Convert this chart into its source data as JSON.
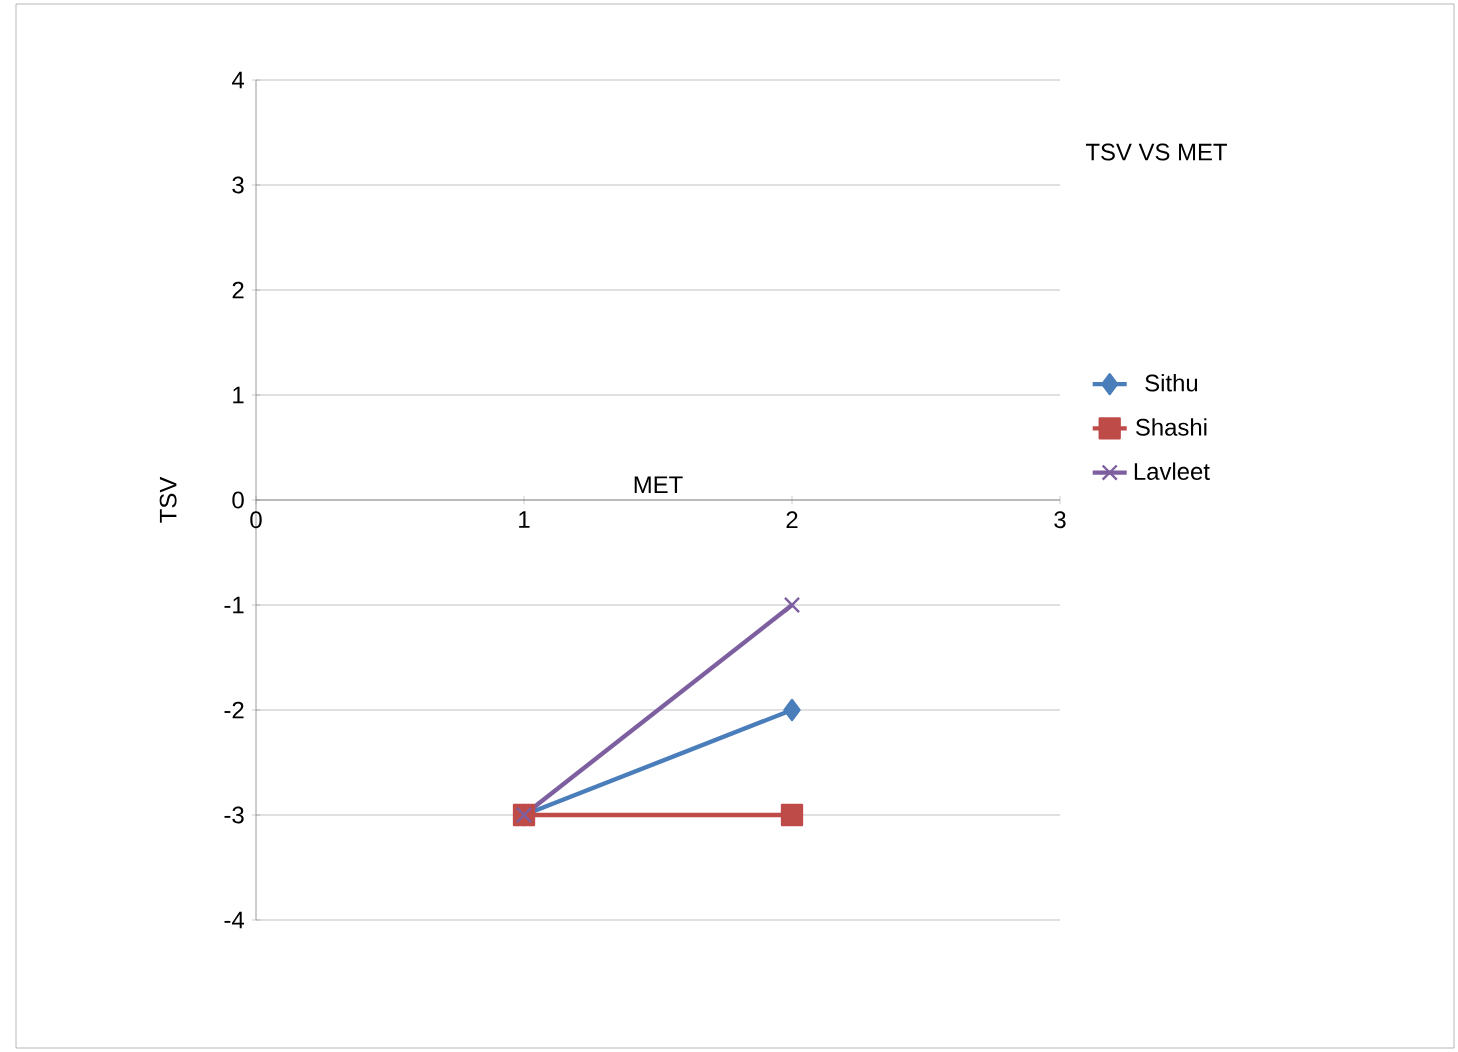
{
  "chart_data": {
    "type": "line",
    "title": "TSV VS MET",
    "xlabel": "MET",
    "ylabel": "TSV",
    "x": [
      1,
      2
    ],
    "series": [
      {
        "name": "Sithu",
        "color": "#4a7ebb",
        "marker": "diamond",
        "values": [
          -3,
          -2
        ]
      },
      {
        "name": "Shashi",
        "color": "#be4b48",
        "marker": "square",
        "values": [
          -3,
          -3
        ]
      },
      {
        "name": "Lavleet",
        "color": "#7d5fa0",
        "marker": "cross",
        "values": [
          -3,
          -1
        ]
      }
    ],
    "xlim": [
      0,
      3
    ],
    "xticks": [
      0,
      1,
      2,
      3
    ],
    "ylim": [
      -4,
      4
    ],
    "yticks": [
      -4,
      -3,
      -2,
      -1,
      0,
      1,
      2,
      3,
      4
    ],
    "grid": "y",
    "legend": "right"
  }
}
